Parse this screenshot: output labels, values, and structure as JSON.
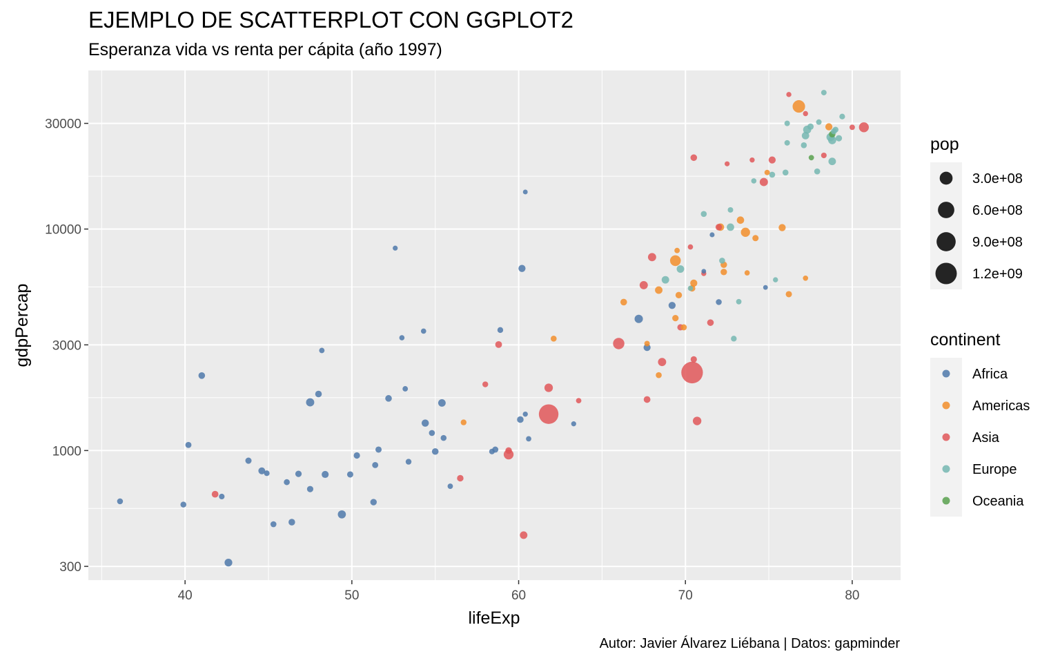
{
  "title": "EJEMPLO DE SCATTERPLOT CON GGPLOT2",
  "subtitle": "Esperanza vida vs renta per cápita (año 1997)",
  "caption": "Autor: Javier Álvarez Liébana | Datos: gapminder",
  "colors": {
    "Africa": "#4f79aa",
    "Americas": "#f28e2b",
    "Asia": "#e15759",
    "Europe": "#76b7b2",
    "Oceania": "#59a14f",
    "panel_bg": "#ebebeb",
    "grid": "#ffffff",
    "legend_key_bg": "#f2f2f2"
  },
  "chart_data": {
    "type": "scatter",
    "xlabel": "lifeExp",
    "ylabel": "gdpPercap",
    "xlim": [
      34.2,
      82.9
    ],
    "ylim": [
      260,
      52000
    ],
    "y_scale": "log10",
    "x_ticks": [
      40,
      50,
      60,
      70,
      80
    ],
    "y_ticks": [
      300,
      1000,
      3000,
      10000,
      30000
    ],
    "y_tick_labels": [
      "300",
      "1000",
      "3000",
      "10000",
      "30000"
    ],
    "grid": true,
    "legend_position": "right",
    "legends": {
      "size": {
        "title": "pop",
        "labels": [
          "3.0e+08",
          "6.0e+08",
          "9.0e+08",
          "1.2e+09"
        ],
        "values": [
          300000000,
          600000000,
          900000000,
          1200000000
        ]
      },
      "color": {
        "title": "continent",
        "labels": [
          "Africa",
          "Americas",
          "Asia",
          "Europe",
          "Oceania"
        ]
      }
    },
    "series": [
      {
        "name": "Africa",
        "points": [
          {
            "x": 36.1,
            "y": 590,
            "pop": 9000000
          },
          {
            "x": 39.9,
            "y": 570,
            "pop": 9000000
          },
          {
            "x": 40.2,
            "y": 1060,
            "pop": 12000000
          },
          {
            "x": 41.0,
            "y": 2180,
            "pop": 20000000
          },
          {
            "x": 42.2,
            "y": 620,
            "pop": 6000000
          },
          {
            "x": 42.6,
            "y": 312,
            "pop": 46000000
          },
          {
            "x": 43.8,
            "y": 900,
            "pop": 14000000
          },
          {
            "x": 44.6,
            "y": 810,
            "pop": 25000000
          },
          {
            "x": 44.9,
            "y": 790,
            "pop": 6000000
          },
          {
            "x": 45.3,
            "y": 465,
            "pop": 10000000
          },
          {
            "x": 46.1,
            "y": 720,
            "pop": 10000000
          },
          {
            "x": 46.4,
            "y": 475,
            "pop": 20000000
          },
          {
            "x": 46.8,
            "y": 785,
            "pop": 16000000
          },
          {
            "x": 47.5,
            "y": 670,
            "pop": 15000000
          },
          {
            "x": 47.5,
            "y": 1650,
            "pop": 59000000
          },
          {
            "x": 48.0,
            "y": 1800,
            "pop": 20000000
          },
          {
            "x": 48.2,
            "y": 2830,
            "pop": 4000000
          },
          {
            "x": 48.4,
            "y": 780,
            "pop": 28000000
          },
          {
            "x": 49.4,
            "y": 515,
            "pop": 56000000
          },
          {
            "x": 49.9,
            "y": 780,
            "pop": 14000000
          },
          {
            "x": 50.3,
            "y": 950,
            "pop": 15000000
          },
          {
            "x": 51.3,
            "y": 585,
            "pop": 18000000
          },
          {
            "x": 51.4,
            "y": 860,
            "pop": 12000000
          },
          {
            "x": 51.6,
            "y": 1010,
            "pop": 14000000
          },
          {
            "x": 52.2,
            "y": 1720,
            "pop": 20000000
          },
          {
            "x": 52.6,
            "y": 8200,
            "pop": 1500000
          },
          {
            "x": 53.0,
            "y": 3230,
            "pop": 3000000
          },
          {
            "x": 53.2,
            "y": 1900,
            "pop": 4000000
          },
          {
            "x": 53.4,
            "y": 890,
            "pop": 8000000
          },
          {
            "x": 54.3,
            "y": 3460,
            "pop": 3000000
          },
          {
            "x": 54.4,
            "y": 1330,
            "pop": 34000000
          },
          {
            "x": 54.8,
            "y": 1200,
            "pop": 10000000
          },
          {
            "x": 55.0,
            "y": 990,
            "pop": 20000000
          },
          {
            "x": 55.4,
            "y": 1640,
            "pop": 40000000
          },
          {
            "x": 55.5,
            "y": 1140,
            "pop": 9000000
          },
          {
            "x": 55.9,
            "y": 690,
            "pop": 4000000
          },
          {
            "x": 58.4,
            "y": 990,
            "pop": 6000000
          },
          {
            "x": 58.6,
            "y": 1010,
            "pop": 12000000
          },
          {
            "x": 58.9,
            "y": 3500,
            "pop": 8000000
          },
          {
            "x": 60.1,
            "y": 1380,
            "pop": 20000000
          },
          {
            "x": 60.2,
            "y": 6640,
            "pop": 30000000
          },
          {
            "x": 60.4,
            "y": 1460,
            "pop": 2000000
          },
          {
            "x": 60.4,
            "y": 14700,
            "pop": 500000
          },
          {
            "x": 60.6,
            "y": 1130,
            "pop": 3500000
          },
          {
            "x": 63.3,
            "y": 1320,
            "pop": 1500000
          },
          {
            "x": 67.2,
            "y": 3930,
            "pop": 64000000
          },
          {
            "x": 67.7,
            "y": 2920,
            "pop": 29000000
          },
          {
            "x": 69.2,
            "y": 4520,
            "pop": 30000000
          },
          {
            "x": 71.6,
            "y": 9420,
            "pop": 1000000
          },
          {
            "x": 71.1,
            "y": 6450,
            "pop": 300000
          },
          {
            "x": 72.0,
            "y": 4680,
            "pop": 9000000
          },
          {
            "x": 74.8,
            "y": 5450,
            "pop": 400000
          }
        ]
      },
      {
        "name": "Americas",
        "points": [
          {
            "x": 56.7,
            "y": 1340,
            "pop": 8000000
          },
          {
            "x": 62.1,
            "y": 3200,
            "pop": 10000000
          },
          {
            "x": 66.3,
            "y": 4680,
            "pop": 21000000
          },
          {
            "x": 67.7,
            "y": 3040,
            "pop": 5000000
          },
          {
            "x": 68.4,
            "y": 2190,
            "pop": 10000000
          },
          {
            "x": 68.4,
            "y": 5300,
            "pop": 40000000
          },
          {
            "x": 69.4,
            "y": 3960,
            "pop": 16000000
          },
          {
            "x": 69.4,
            "y": 7200,
            "pop": 168000000
          },
          {
            "x": 69.5,
            "y": 8000,
            "pop": 4000000
          },
          {
            "x": 69.6,
            "y": 5030,
            "pop": 18000000
          },
          {
            "x": 69.9,
            "y": 3600,
            "pop": 12000000
          },
          {
            "x": 70.4,
            "y": 5400,
            "pop": 18000000
          },
          {
            "x": 70.5,
            "y": 5700,
            "pop": 30000000
          },
          {
            "x": 72.1,
            "y": 10200,
            "pop": 36000000
          },
          {
            "x": 72.3,
            "y": 6900,
            "pop": 18000000
          },
          {
            "x": 72.3,
            "y": 6400,
            "pop": 18000000
          },
          {
            "x": 73.3,
            "y": 10970,
            "pop": 36000000
          },
          {
            "x": 73.6,
            "y": 9670,
            "pop": 95000000
          },
          {
            "x": 73.7,
            "y": 6340,
            "pop": 3000000
          },
          {
            "x": 74.2,
            "y": 9100,
            "pop": 14000000
          },
          {
            "x": 74.9,
            "y": 18000,
            "pop": 4000000
          },
          {
            "x": 75.8,
            "y": 10150,
            "pop": 30000000
          },
          {
            "x": 76.2,
            "y": 5080,
            "pop": 14000000
          },
          {
            "x": 77.2,
            "y": 6000,
            "pop": 3000000
          },
          {
            "x": 76.8,
            "y": 35770,
            "pop": 272000000
          },
          {
            "x": 78.6,
            "y": 28950,
            "pop": 30000000
          }
        ]
      },
      {
        "name": "Asia",
        "points": [
          {
            "x": 41.8,
            "y": 635,
            "pop": 22000000
          },
          {
            "x": 56.5,
            "y": 750,
            "pop": 18000000
          },
          {
            "x": 58.0,
            "y": 1990,
            "pop": 8000000
          },
          {
            "x": 58.8,
            "y": 3010,
            "pop": 23000000
          },
          {
            "x": 59.4,
            "y": 960,
            "pop": 124000000
          },
          {
            "x": 59.4,
            "y": 1000,
            "pop": 18000000
          },
          {
            "x": 60.3,
            "y": 415,
            "pop": 40000000
          },
          {
            "x": 61.8,
            "y": 1460,
            "pop": 959000000
          },
          {
            "x": 61.8,
            "y": 1920,
            "pop": 68000000
          },
          {
            "x": 63.6,
            "y": 1680,
            "pop": 4000000
          },
          {
            "x": 66.0,
            "y": 3040,
            "pop": 200000000
          },
          {
            "x": 67.5,
            "y": 5580,
            "pop": 60000000
          },
          {
            "x": 67.7,
            "y": 1700,
            "pop": 22000000
          },
          {
            "x": 68.0,
            "y": 7470,
            "pop": 60000000
          },
          {
            "x": 68.6,
            "y": 2510,
            "pop": 60000000
          },
          {
            "x": 69.7,
            "y": 3600,
            "pop": 14000000
          },
          {
            "x": 70.3,
            "y": 8300,
            "pop": 3000000
          },
          {
            "x": 70.4,
            "y": 2250,
            "pop": 1230000000
          },
          {
            "x": 70.5,
            "y": 2580,
            "pop": 15000000
          },
          {
            "x": 70.7,
            "y": 1360,
            "pop": 70000000
          },
          {
            "x": 70.5,
            "y": 21000,
            "pop": 20000000
          },
          {
            "x": 71.1,
            "y": 6300,
            "pop": 2000000
          },
          {
            "x": 71.5,
            "y": 3780,
            "pop": 20000000
          },
          {
            "x": 72.0,
            "y": 10200,
            "pop": 18000000
          },
          {
            "x": 72.5,
            "y": 19700,
            "pop": 1500000
          },
          {
            "x": 74.0,
            "y": 20500,
            "pop": 2000000
          },
          {
            "x": 74.7,
            "y": 16300,
            "pop": 60000000
          },
          {
            "x": 75.2,
            "y": 20500,
            "pop": 30000000
          },
          {
            "x": 76.2,
            "y": 40500,
            "pop": 2000000
          },
          {
            "x": 77.2,
            "y": 33200,
            "pop": 2000000
          },
          {
            "x": 78.3,
            "y": 21500,
            "pop": 6000000
          },
          {
            "x": 80.0,
            "y": 28800,
            "pop": 4000000
          },
          {
            "x": 80.7,
            "y": 28800,
            "pop": 125000000
          }
        ]
      },
      {
        "name": "Europe",
        "points": [
          {
            "x": 68.8,
            "y": 5900,
            "pop": 40000000
          },
          {
            "x": 69.7,
            "y": 6600,
            "pop": 40000000
          },
          {
            "x": 70.3,
            "y": 5400,
            "pop": 3000000
          },
          {
            "x": 71.1,
            "y": 11700,
            "pop": 10000000
          },
          {
            "x": 72.2,
            "y": 7200,
            "pop": 10000000
          },
          {
            "x": 72.7,
            "y": 12200,
            "pop": 5000000
          },
          {
            "x": 72.7,
            "y": 10200,
            "pop": 38000000
          },
          {
            "x": 72.9,
            "y": 3200,
            "pop": 8000000
          },
          {
            "x": 73.2,
            "y": 4700,
            "pop": 4000000
          },
          {
            "x": 74.1,
            "y": 16500,
            "pop": 3000000
          },
          {
            "x": 75.2,
            "y": 17600,
            "pop": 10000000
          },
          {
            "x": 75.4,
            "y": 5900,
            "pop": 2000000
          },
          {
            "x": 76.0,
            "y": 18000,
            "pop": 10000000
          },
          {
            "x": 76.1,
            "y": 24500,
            "pop": 5000000
          },
          {
            "x": 76.1,
            "y": 30000,
            "pop": 5000000
          },
          {
            "x": 77.1,
            "y": 23900,
            "pop": 10000000
          },
          {
            "x": 77.2,
            "y": 26400,
            "pop": 38000000
          },
          {
            "x": 77.3,
            "y": 28100,
            "pop": 57000000
          },
          {
            "x": 77.5,
            "y": 29000,
            "pop": 15000000
          },
          {
            "x": 77.9,
            "y": 18200,
            "pop": 10000000
          },
          {
            "x": 78.0,
            "y": 30400,
            "pop": 5000000
          },
          {
            "x": 78.3,
            "y": 41300,
            "pop": 5000000
          },
          {
            "x": 78.7,
            "y": 26000,
            "pop": 58000000
          },
          {
            "x": 78.8,
            "y": 20200,
            "pop": 40000000
          },
          {
            "x": 78.8,
            "y": 25200,
            "pop": 59000000
          },
          {
            "x": 78.9,
            "y": 27600,
            "pop": 8000000
          },
          {
            "x": 79.2,
            "y": 25700,
            "pop": 15000000
          },
          {
            "x": 79.4,
            "y": 32200,
            "pop": 7000000
          },
          {
            "x": 79.0,
            "y": 28100,
            "pop": 9000000
          }
        ]
      },
      {
        "name": "Oceania",
        "points": [
          {
            "x": 77.55,
            "y": 21000,
            "pop": 3800000
          },
          {
            "x": 78.8,
            "y": 26800,
            "pop": 18600000
          }
        ]
      }
    ]
  }
}
